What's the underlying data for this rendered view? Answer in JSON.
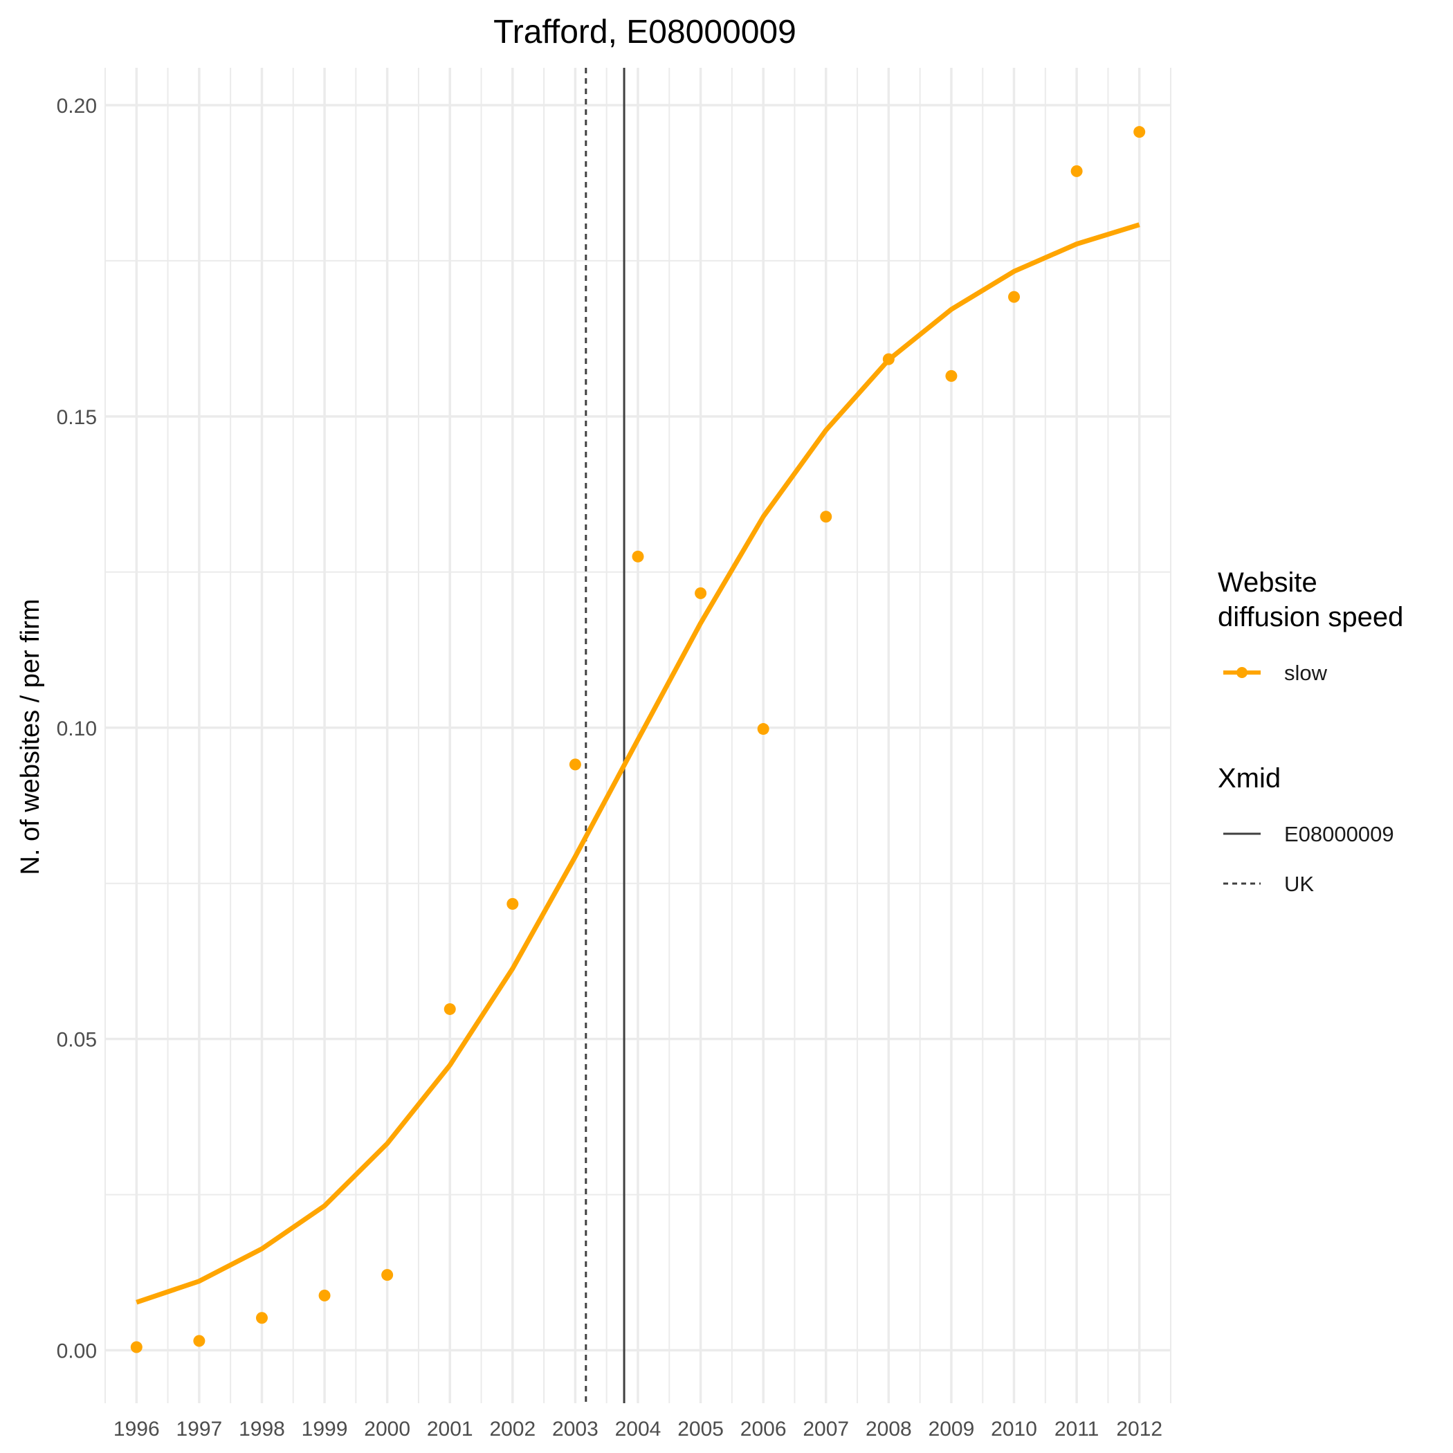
{
  "chart_data": {
    "type": "line",
    "title": "Trafford, E08000009",
    "xlabel": "",
    "ylabel": "N. of websites / per firm",
    "x": [
      1996,
      1997,
      1998,
      1999,
      2000,
      2001,
      2002,
      2003,
      2004,
      2005,
      2006,
      2007,
      2008,
      2009,
      2010,
      2011,
      2012
    ],
    "xlim": [
      1995.5,
      2012.5
    ],
    "ylim": [
      -0.0085,
      0.206
    ],
    "x_ticks": [
      "1996",
      "1997",
      "1998",
      "1999",
      "2000",
      "2001",
      "2002",
      "2003",
      "2004",
      "2005",
      "2006",
      "2007",
      "2008",
      "2009",
      "2010",
      "2011",
      "2012"
    ],
    "y_ticks": [
      "0.00",
      "0.05",
      "0.10",
      "0.15",
      "0.20"
    ],
    "y_tick_values": [
      0.0,
      0.05,
      0.1,
      0.15,
      0.2
    ],
    "grid": true,
    "series": [
      {
        "name": "slow",
        "color": "#FFA500",
        "points": [
          0.0005,
          0.0015,
          0.0052,
          0.0088,
          0.0121,
          0.0548,
          0.0717,
          0.0941,
          0.1275,
          0.1216,
          0.0998,
          0.1339,
          0.1592,
          0.1565,
          0.1692,
          0.1894,
          0.1957
        ],
        "fitted": [
          0.0077,
          0.0111,
          0.0163,
          0.0232,
          0.0332,
          0.0458,
          0.0613,
          0.0793,
          0.0981,
          0.1168,
          0.1339,
          0.1478,
          0.1591,
          0.1672,
          0.1733,
          0.1777,
          0.1808
        ]
      }
    ],
    "vlines": [
      {
        "name": "E08000009",
        "x": 2003.78,
        "style": "solid",
        "color": "#404040"
      },
      {
        "name": "UK",
        "x": 2003.17,
        "style": "dashed",
        "color": "#404040"
      }
    ],
    "legend": {
      "position": "right",
      "group1_title_line1": "Website",
      "group1_title_line2": "diffusion speed",
      "group1_label": "slow",
      "group2_title": "Xmid",
      "group2_label1": "E08000009",
      "group2_label2": "UK"
    }
  }
}
